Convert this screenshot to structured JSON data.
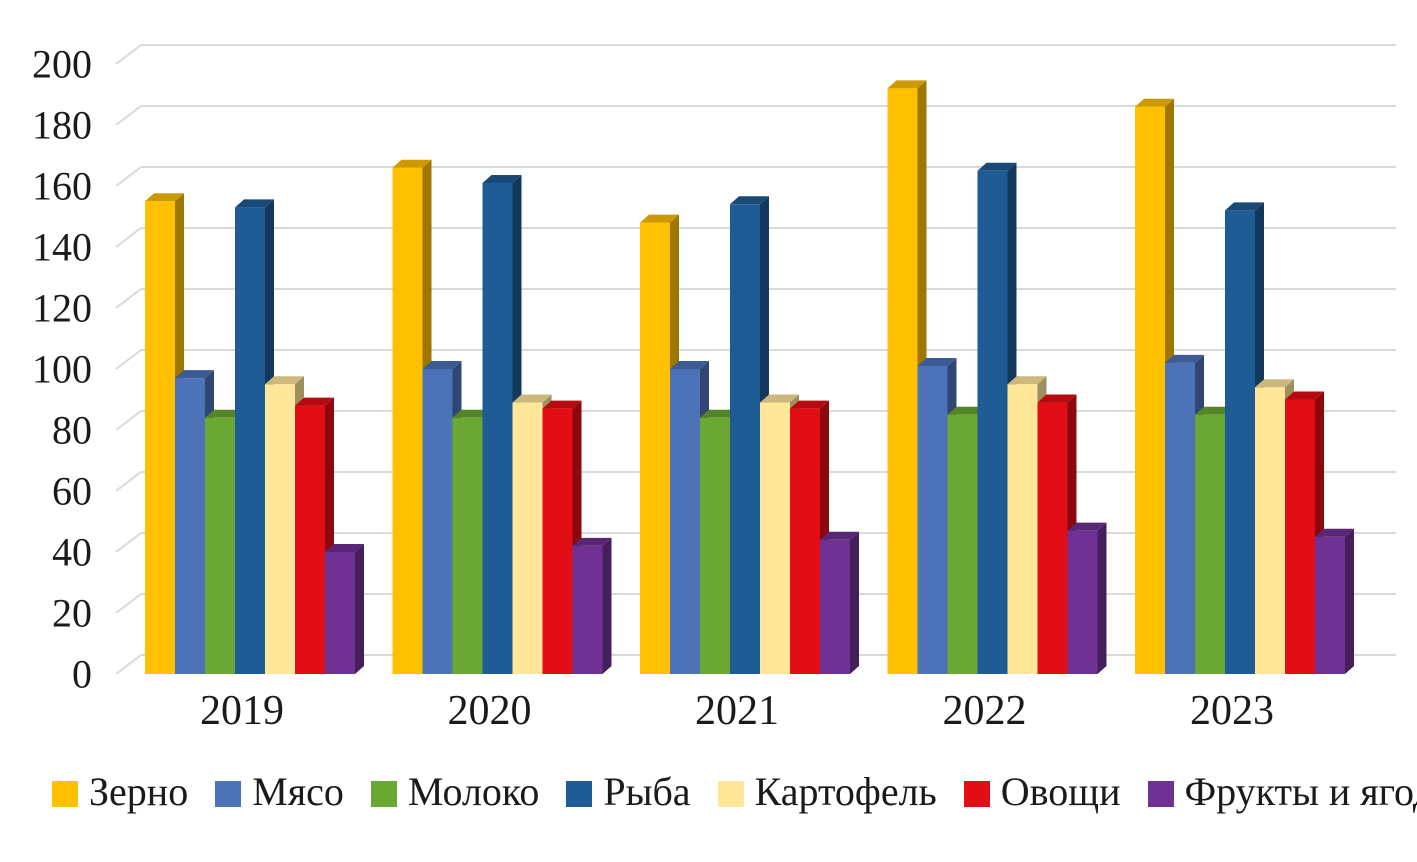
{
  "chart_data": {
    "type": "bar",
    "style": "3d-clustered-column",
    "title": "",
    "xlabel": "",
    "ylabel": "",
    "categories": [
      "2019",
      "2020",
      "2021",
      "2022",
      "2023"
    ],
    "series": [
      {
        "name": "Зерно",
        "color": "#FFC000",
        "values": [
          155,
          166,
          148,
          192,
          186
        ]
      },
      {
        "name": "Мясо",
        "color": "#4C72B8",
        "values": [
          97,
          100,
          100,
          101,
          102
        ]
      },
      {
        "name": "Молоко",
        "color": "#69A832",
        "values": [
          84,
          84,
          84,
          85,
          85
        ]
      },
      {
        "name": "Рыба",
        "color": "#1F5B94",
        "values": [
          153,
          161,
          154,
          165,
          152
        ]
      },
      {
        "name": "Картофель",
        "color": "#FFE699",
        "values": [
          95,
          89,
          89,
          95,
          94
        ]
      },
      {
        "name": "Овощи",
        "color": "#E30D15",
        "values": [
          88,
          87,
          87,
          89,
          90
        ]
      },
      {
        "name": "Фрукты и ягоды",
        "color": "#6F3194",
        "values": [
          40,
          42,
          44,
          47,
          45
        ]
      }
    ],
    "ylim": [
      0,
      200
    ],
    "ytick_step": 20,
    "ytick_labels": [
      "0",
      "20",
      "40",
      "60",
      "80",
      "100",
      "120",
      "140",
      "160",
      "180",
      "200"
    ],
    "grid": true,
    "gridline_color": "#D9D9D9",
    "text_color": "#1a1a1a",
    "legend_position": "bottom"
  }
}
